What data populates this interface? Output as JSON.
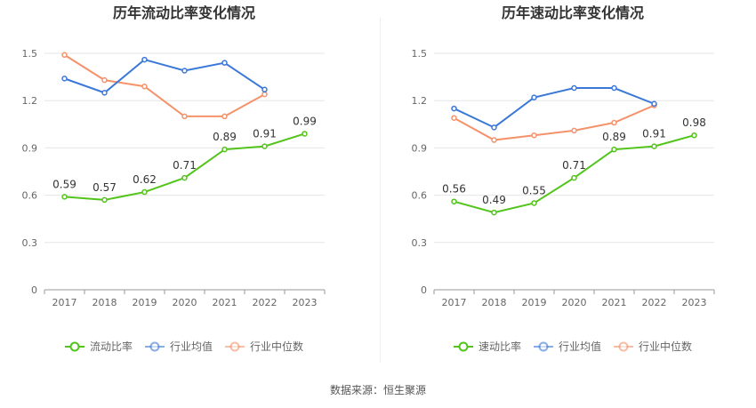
{
  "chart_data": [
    {
      "type": "line",
      "title": "历年流动比率变化情况",
      "categories": [
        "2017",
        "2018",
        "2019",
        "2020",
        "2021",
        "2022",
        "2023"
      ],
      "ylim": [
        0,
        1.5
      ],
      "yticks": [
        "0",
        "0.3",
        "0.6",
        "0.9",
        "1.2",
        "1.5"
      ],
      "grid": true,
      "legend_position": "bottom",
      "series": [
        {
          "name": "流动比率",
          "color": "#52c41a",
          "values": [
            0.59,
            0.57,
            0.62,
            0.71,
            0.89,
            0.91,
            0.99
          ],
          "labels": [
            "0.59",
            "0.57",
            "0.62",
            "0.71",
            "0.89",
            "0.91",
            "0.99"
          ]
        },
        {
          "name": "行业均值",
          "color": "#3a78d8",
          "values": [
            1.34,
            1.25,
            1.46,
            1.39,
            1.44,
            1.27,
            null
          ]
        },
        {
          "name": "行业中位数",
          "color": "#f5926a",
          "values": [
            1.49,
            1.33,
            1.29,
            1.1,
            1.1,
            1.24,
            null
          ]
        }
      ]
    },
    {
      "type": "line",
      "title": "历年速动比率变化情况",
      "categories": [
        "2017",
        "2018",
        "2019",
        "2020",
        "2021",
        "2022",
        "2023"
      ],
      "ylim": [
        0,
        1.5
      ],
      "yticks": [
        "0",
        "0.3",
        "0.6",
        "0.9",
        "1.2",
        "1.5"
      ],
      "grid": true,
      "legend_position": "bottom",
      "series": [
        {
          "name": "速动比率",
          "color": "#52c41a",
          "values": [
            0.56,
            0.49,
            0.55,
            0.71,
            0.89,
            0.91,
            0.98
          ],
          "labels": [
            "0.56",
            "0.49",
            "0.55",
            "0.71",
            "0.89",
            "0.91",
            "0.98"
          ]
        },
        {
          "name": "行业均值",
          "color": "#3a78d8",
          "values": [
            1.15,
            1.03,
            1.22,
            1.28,
            1.28,
            1.18,
            null
          ]
        },
        {
          "name": "行业中位数",
          "color": "#f5926a",
          "values": [
            1.09,
            0.95,
            0.98,
            1.01,
            1.06,
            1.17,
            null
          ]
        }
      ]
    }
  ],
  "source": "数据来源：恒生聚源"
}
